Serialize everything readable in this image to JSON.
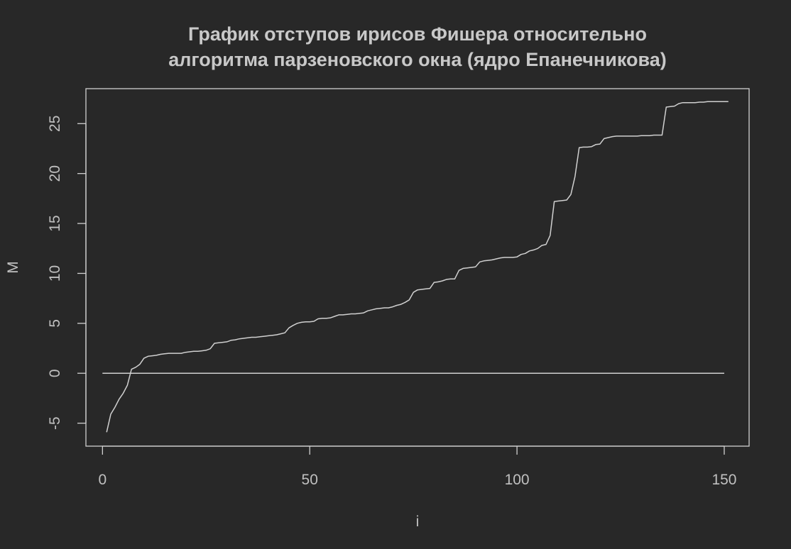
{
  "colors": {
    "background": "#282828",
    "foreground": "#d0d0d0",
    "text": "#c0c0c0"
  },
  "chart_data": {
    "type": "line",
    "title": "График отступов ирисов Фишера относительно алгоритма парзеновского окна (ядро Епанечникова)",
    "title_lines": [
      "График отступов ирисов Фишера относительно",
      "алгоритма парзеновского окна (ядро Епанечникова)"
    ],
    "xlabel": "i",
    "ylabel": "M",
    "xlim": [
      -4,
      156
    ],
    "ylim": [
      -7.3,
      28.5
    ],
    "x_ticks": [
      0,
      50,
      100,
      150
    ],
    "y_ticks": [
      -5,
      0,
      5,
      10,
      15,
      20,
      25
    ],
    "grid": false,
    "series": [
      {
        "values": [
          -5.9,
          -4.1,
          -3.4,
          -2.6,
          -2.0,
          -1.2,
          0.4,
          0.6,
          0.9,
          1.5,
          1.7,
          1.75,
          1.8,
          1.9,
          1.95,
          2.0,
          2.0,
          2.0,
          2.0,
          2.1,
          2.15,
          2.2,
          2.2,
          2.25,
          2.3,
          2.45,
          3.0,
          3.05,
          3.1,
          3.15,
          3.3,
          3.35,
          3.45,
          3.5,
          3.55,
          3.6,
          3.6,
          3.65,
          3.7,
          3.75,
          3.8,
          3.85,
          3.95,
          4.05,
          4.55,
          4.8,
          5.0,
          5.1,
          5.15,
          5.15,
          5.2,
          5.45,
          5.5,
          5.5,
          5.55,
          5.7,
          5.85,
          5.85,
          5.9,
          5.95,
          5.95,
          6.0,
          6.05,
          6.25,
          6.35,
          6.45,
          6.5,
          6.55,
          6.55,
          6.65,
          6.8,
          6.9,
          7.1,
          7.35,
          8.1,
          8.35,
          8.4,
          8.45,
          8.5,
          9.1,
          9.15,
          9.25,
          9.4,
          9.45,
          9.45,
          10.3,
          10.5,
          10.55,
          10.6,
          10.65,
          11.15,
          11.25,
          11.3,
          11.35,
          11.45,
          11.55,
          11.6,
          11.6,
          11.6,
          11.65,
          11.9,
          12.0,
          12.25,
          12.35,
          12.5,
          12.8,
          12.9,
          13.8,
          17.2,
          17.25,
          17.3,
          17.35,
          17.9,
          19.7,
          22.6,
          22.65,
          22.65,
          22.7,
          22.9,
          22.95,
          23.5,
          23.6,
          23.7,
          23.75,
          23.75,
          23.75,
          23.75,
          23.75,
          23.75,
          23.8,
          23.8,
          23.8,
          23.85,
          23.85,
          23.85,
          26.65,
          26.7,
          26.75,
          27.0,
          27.1,
          27.1,
          27.1,
          27.1,
          27.15,
          27.15,
          27.2,
          27.2,
          27.2,
          27.2,
          27.2,
          27.2
        ]
      },
      {
        "x": [
          0,
          150
        ],
        "values": [
          0,
          0
        ]
      }
    ]
  }
}
